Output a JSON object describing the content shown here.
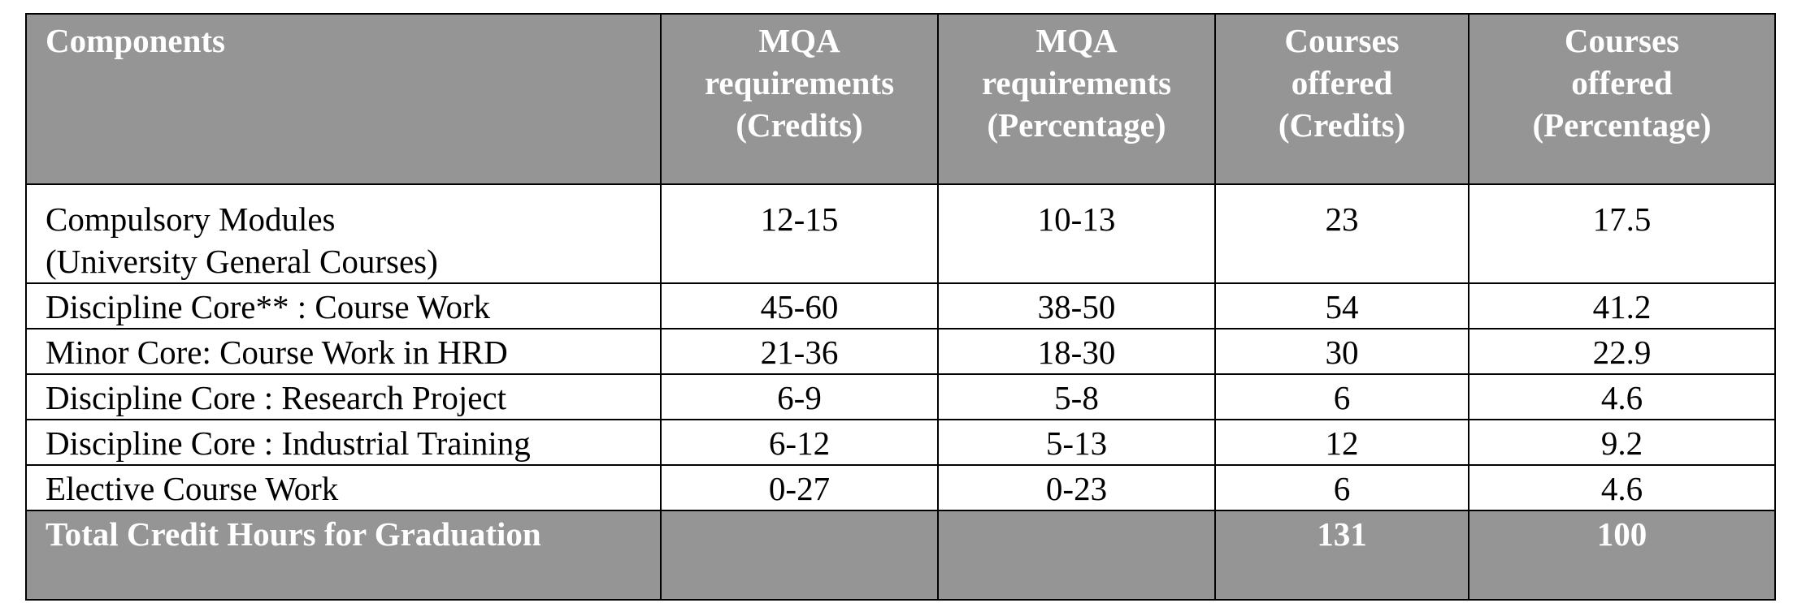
{
  "table": {
    "headers": {
      "components": "Components",
      "mqa_credits": "MQA\nrequirements\n(Credits)",
      "mqa_percentage": "MQA\nrequirements\n(Percentage)",
      "offered_credits": "Courses\noffered\n(Credits)",
      "offered_percentage": "Courses\noffered\n(Percentage)"
    },
    "rows": [
      {
        "component": "Compulsory Modules\n(University General Courses)",
        "mqa_credits": "12-15",
        "mqa_percentage": "10-13",
        "offered_credits": "23",
        "offered_percentage": "17.5"
      },
      {
        "component": "Discipline Core** : Course Work",
        "mqa_credits": "45-60",
        "mqa_percentage": "38-50",
        "offered_credits": "54",
        "offered_percentage": "41.2"
      },
      {
        "component": "Minor Core: Course Work in HRD",
        "mqa_credits": "21-36",
        "mqa_percentage": "18-30",
        "offered_credits": "30",
        "offered_percentage": "22.9"
      },
      {
        "component": "Discipline Core : Research Project",
        "mqa_credits": "6-9",
        "mqa_percentage": "5-8",
        "offered_credits": "6",
        "offered_percentage": "4.6"
      },
      {
        "component": "Discipline Core : Industrial Training",
        "mqa_credits": "6-12",
        "mqa_percentage": "5-13",
        "offered_credits": "12",
        "offered_percentage": "9.2"
      },
      {
        "component": "Elective Course Work",
        "mqa_credits": "0-27",
        "mqa_percentage": "0-23",
        "offered_credits": "6",
        "offered_percentage": "4.6"
      }
    ],
    "total": {
      "label": "Total Credit Hours for Graduation",
      "mqa_credits": "",
      "mqa_percentage": "",
      "offered_credits": "131",
      "offered_percentage": "100"
    }
  },
  "colors": {
    "header_background": "#959595",
    "header_text": "#ffffff",
    "border": "#000000"
  }
}
